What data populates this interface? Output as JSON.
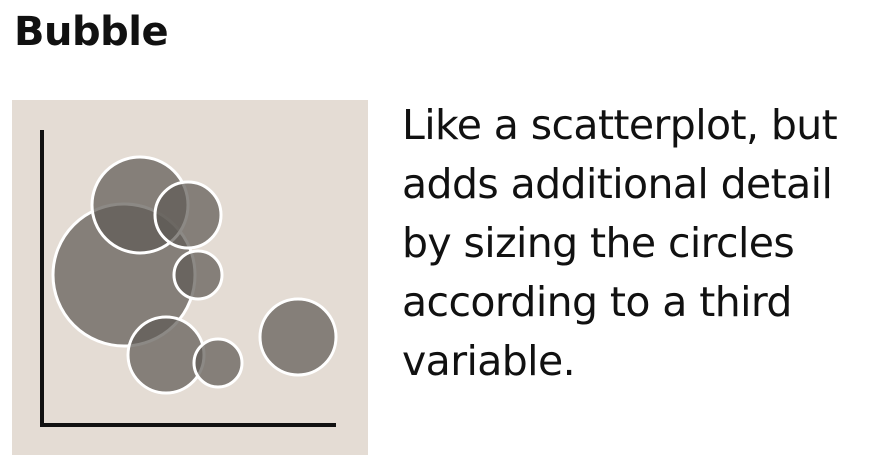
{
  "title": "Bubble",
  "description": "Like a scatterplot, but adds additional detail by sizing the circles according to a third variable.",
  "colors": {
    "panel_background": "#e4dcd4",
    "bubble_fill": "#5f5c56",
    "bubble_stroke": "#ffffff",
    "axis": "#111111",
    "text": "#111111"
  },
  "bubbles": [
    {
      "name": "large"
    },
    {
      "name": "top"
    },
    {
      "name": "upper-right"
    },
    {
      "name": "middle-small"
    },
    {
      "name": "bottom-medium"
    },
    {
      "name": "bottom-small"
    },
    {
      "name": "right"
    }
  ]
}
